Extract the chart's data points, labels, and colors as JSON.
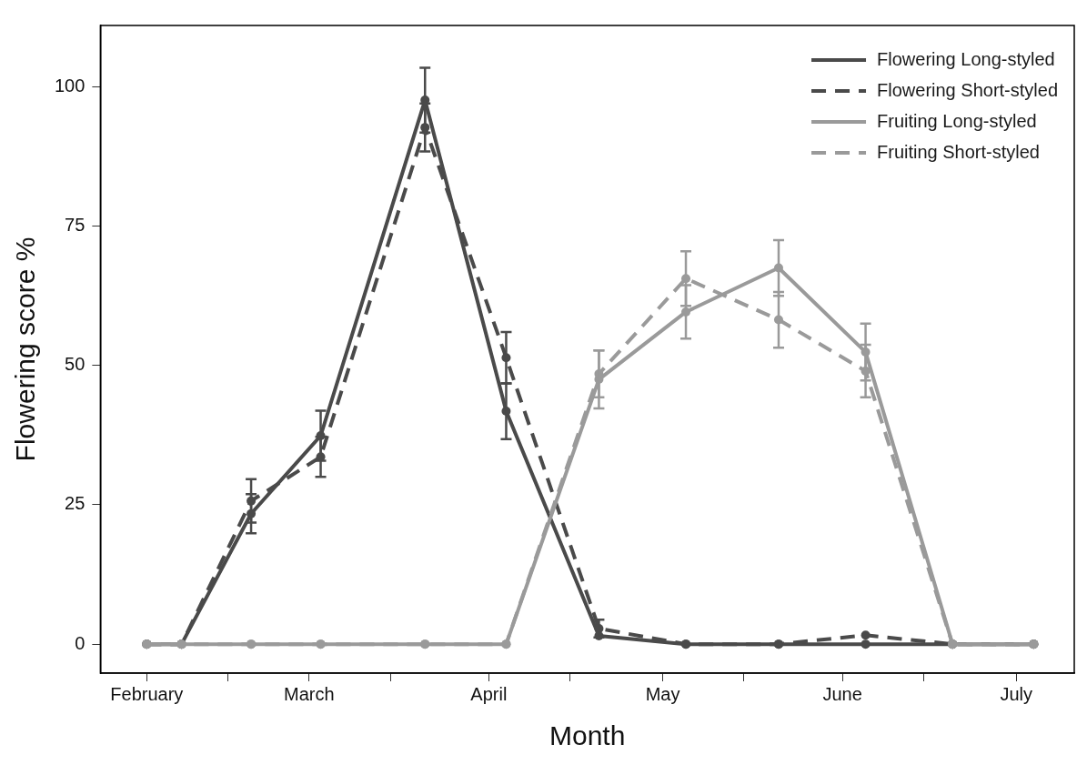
{
  "chart_data": {
    "type": "line",
    "xlabel": "Month",
    "ylabel": "Flowering score %",
    "x": [
      "--02-01",
      "--02-07",
      "--02-19",
      "--03-03",
      "--03-21",
      "--04-04",
      "--04-20",
      "--05-05",
      "--05-21",
      "--06-05",
      "--06-20",
      "--07-04"
    ],
    "xlim": [
      "--01-24",
      "--07-11"
    ],
    "xticks": [
      {
        "value": "--02-01",
        "label": "February"
      },
      {
        "value": "--02-15",
        "label": null
      },
      {
        "value": "--03-01",
        "label": "March"
      },
      {
        "value": "--03-15",
        "label": null
      },
      {
        "value": "--04-01",
        "label": "April"
      },
      {
        "value": "--04-15",
        "label": null
      },
      {
        "value": "--05-01",
        "label": "May"
      },
      {
        "value": "--05-15",
        "label": null
      },
      {
        "value": "--06-01",
        "label": "June"
      },
      {
        "value": "--06-15",
        "label": null
      },
      {
        "value": "--07-01",
        "label": "July"
      }
    ],
    "ylim": [
      -5.2,
      111
    ],
    "yticks": [
      0,
      25,
      50,
      75,
      100
    ],
    "grid": false,
    "legend": "top right",
    "marker": "circle",
    "series": [
      {
        "name": "Flowering Long-styled",
        "color": "#4a4a4a",
        "line_style": "solid",
        "values": [
          0,
          0,
          23.4,
          37.4,
          97.6,
          41.8,
          1.5,
          0,
          0,
          0,
          0,
          0
        ],
        "errors": [
          null,
          null,
          3.5,
          4.5,
          5.8,
          5.0,
          null,
          null,
          null,
          null,
          null,
          null
        ]
      },
      {
        "name": "Flowering Short-styled",
        "color": "#4a4a4a",
        "line_style": "dashed",
        "values": [
          0,
          0,
          25.7,
          33.6,
          92.7,
          51.4,
          2.8,
          0,
          0,
          1.6,
          0,
          0
        ],
        "errors": [
          null,
          null,
          3.9,
          3.6,
          4.3,
          4.6,
          1.6,
          null,
          null,
          null,
          null,
          null
        ]
      },
      {
        "name": "Fruiting Long-styled",
        "color": "#9a9a9a",
        "line_style": "solid",
        "values": [
          0,
          0,
          0,
          0,
          0,
          0,
          47.5,
          59.6,
          67.5,
          52.4,
          0,
          0
        ],
        "errors": [
          null,
          null,
          null,
          null,
          null,
          null,
          5.2,
          4.8,
          5.0,
          5.1,
          null,
          null
        ]
      },
      {
        "name": "Fruiting Short-styled",
        "color": "#9a9a9a",
        "line_style": "dashed",
        "values": [
          0,
          0,
          0,
          0,
          0,
          0,
          48.5,
          65.6,
          58.2,
          49.0,
          0,
          0
        ],
        "errors": [
          null,
          null,
          null,
          null,
          null,
          null,
          4.2,
          4.9,
          5.0,
          4.7,
          null,
          null
        ]
      }
    ]
  }
}
